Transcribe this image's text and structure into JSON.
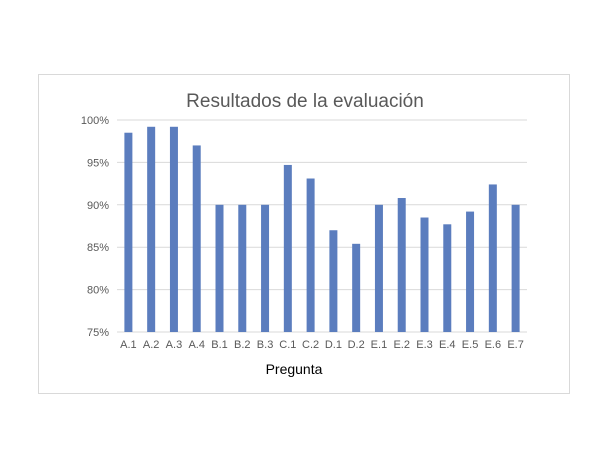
{
  "chart_data": {
    "type": "bar",
    "title": "Resultados de la evaluación",
    "xlabel": "Pregunta",
    "ylabel": "",
    "categories": [
      "A.1",
      "A.2",
      "A.3",
      "A.4",
      "B.1",
      "B.2",
      "B.3",
      "C.1",
      "C.2",
      "D.1",
      "D.2",
      "E.1",
      "E.2",
      "E.3",
      "E.4",
      "E.5",
      "E.6",
      "E.7"
    ],
    "values": [
      98.5,
      99.2,
      99.2,
      97.0,
      90.0,
      90.0,
      90.0,
      94.7,
      93.1,
      87.0,
      85.4,
      90.0,
      90.8,
      88.5,
      87.7,
      89.2,
      92.4,
      90.0
    ],
    "ylim": [
      75,
      100
    ],
    "yticks": [
      75,
      80,
      85,
      90,
      95,
      100
    ],
    "ytick_labels": [
      "75%",
      "80%",
      "85%",
      "90%",
      "95%",
      "100%"
    ],
    "grid": true,
    "legend": "none",
    "bar_color": "#5b7dbe",
    "grid_color": "#d9d9d9"
  }
}
